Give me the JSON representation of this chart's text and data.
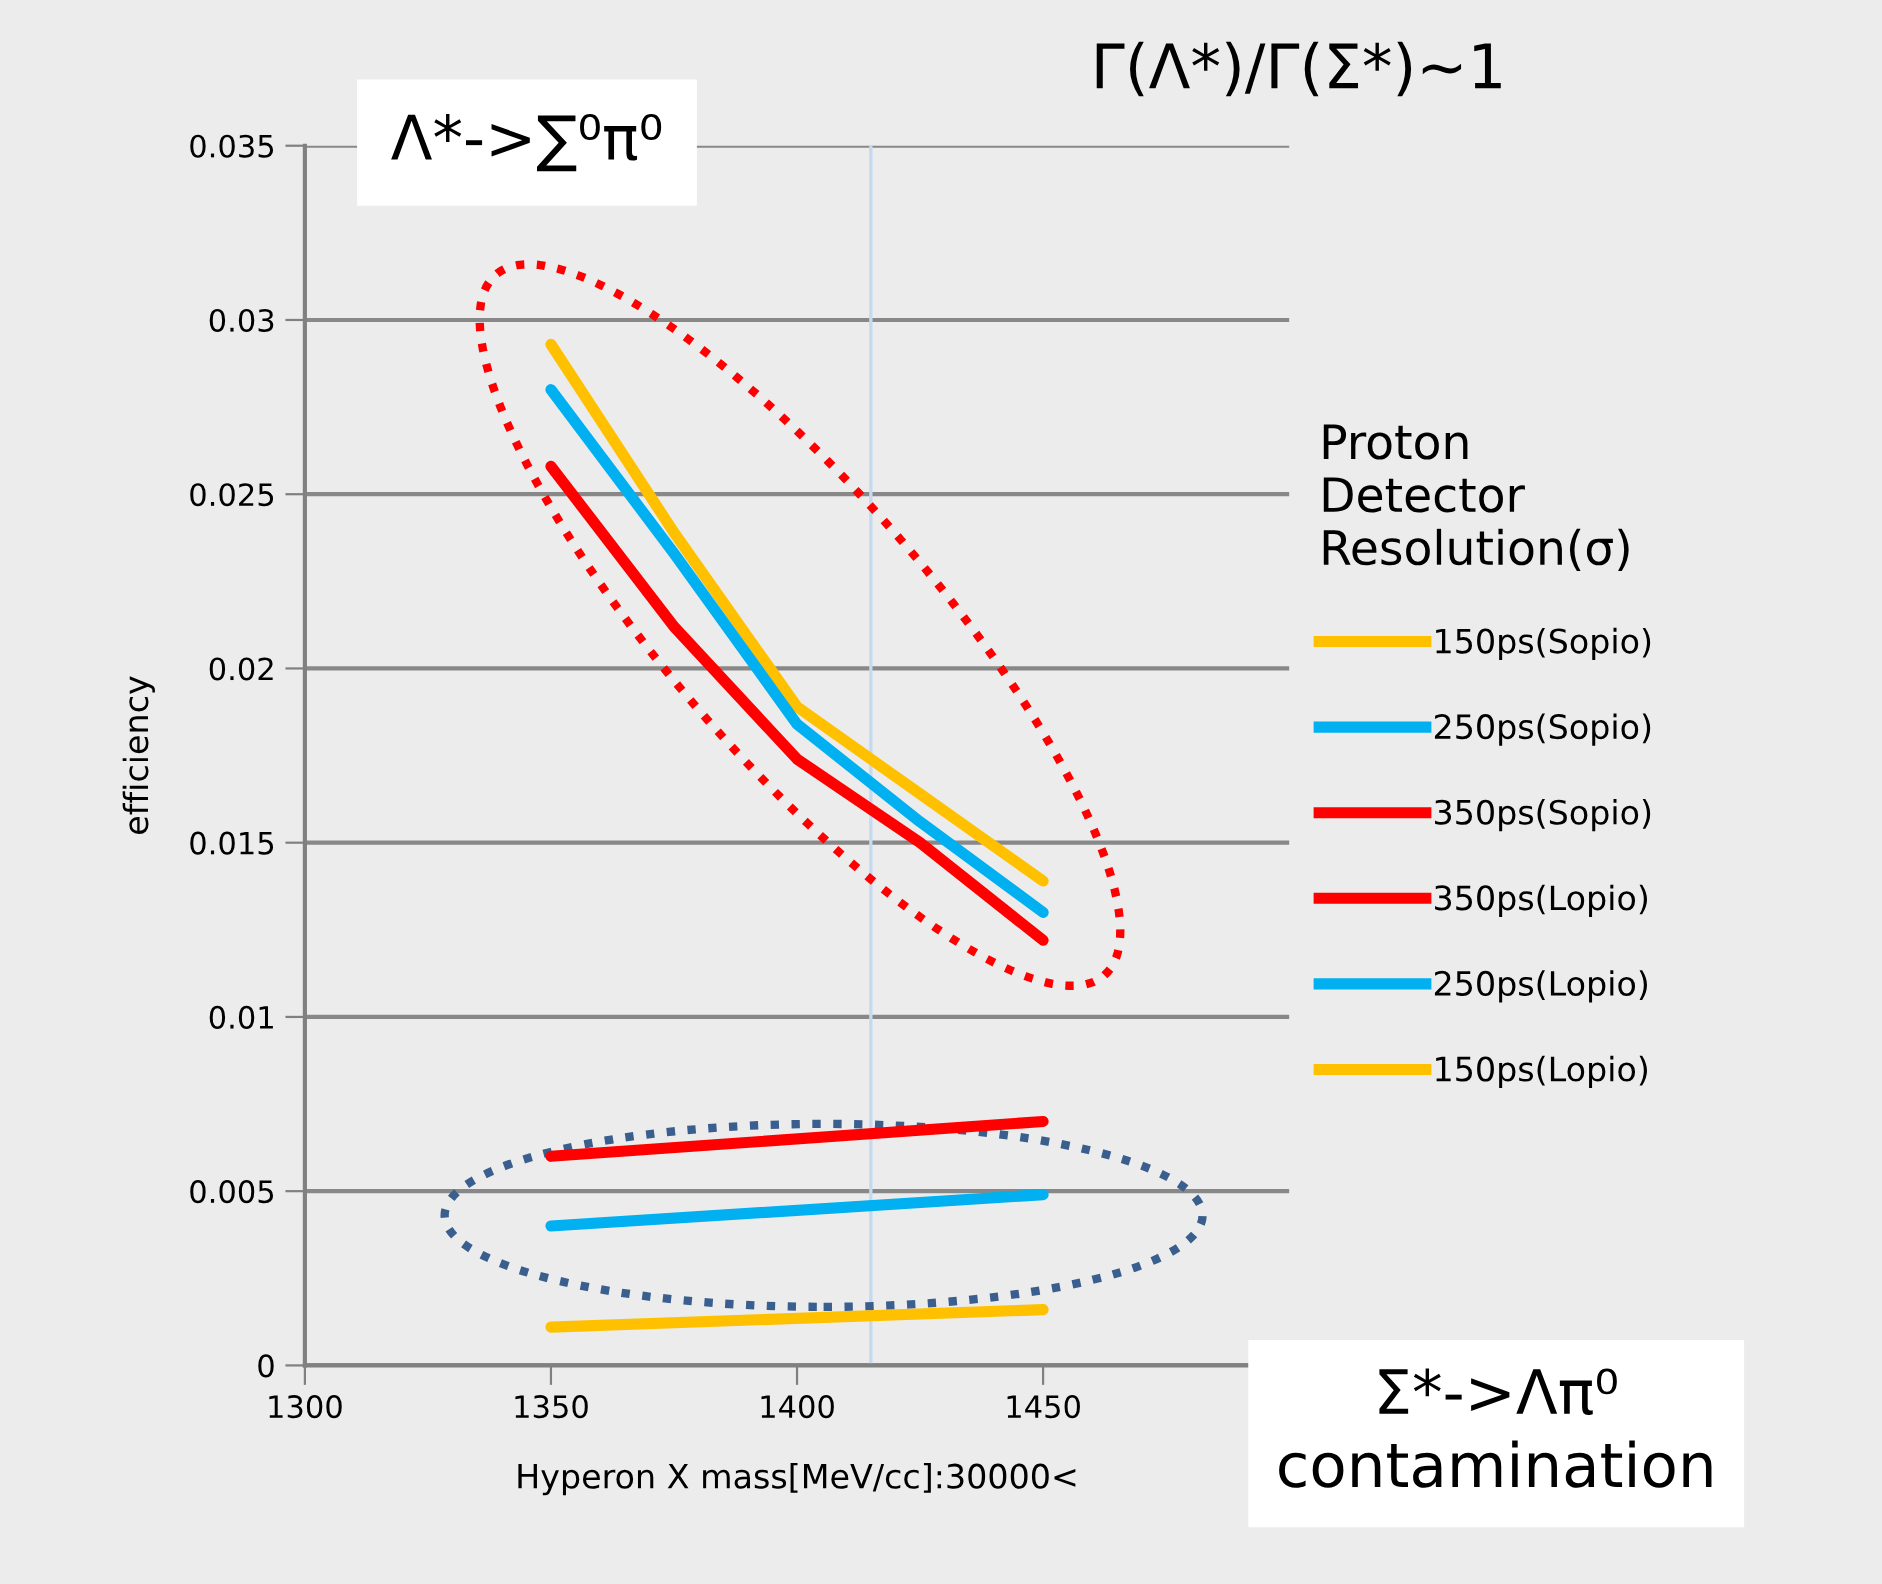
{
  "chart_data": {
    "type": "line",
    "xlabel": "Hyperon X mass[MeV/cc]:30000<",
    "ylabel": "efficiency",
    "legend_title": "Proton Detector Resolution(σ)",
    "annotations": [
      "Γ(Λ*)/Γ(Σ*)∼1",
      "Λ*->∑⁰π⁰",
      "Σ*->Λπ⁰ contamination"
    ],
    "series": [
      {
        "name": "150ps(Sopio)",
        "color": "#ffc000",
        "x": [
          1350,
          1375,
          1400,
          1425,
          1450
        ],
        "values": [
          0.0293,
          0.0239,
          0.0189,
          0.0164,
          0.0139
        ]
      },
      {
        "name": "250ps(Sopio)",
        "color": "#00b0f0",
        "x": [
          1350,
          1375,
          1400,
          1425,
          1450
        ],
        "values": [
          0.028,
          0.0233,
          0.0184,
          0.0156,
          0.013
        ]
      },
      {
        "name": "350ps(Sopio)",
        "color": "#ff0000",
        "x": [
          1350,
          1375,
          1400,
          1425,
          1450
        ],
        "values": [
          0.0258,
          0.0212,
          0.0174,
          0.015,
          0.0122
        ]
      },
      {
        "name": "350ps(Lopio)",
        "color": "#ff0000",
        "x": [
          1350,
          1450
        ],
        "values": [
          0.006,
          0.007
        ]
      },
      {
        "name": "250ps(Lopio)",
        "color": "#00b0f0",
        "x": [
          1350,
          1450
        ],
        "values": [
          0.004,
          0.0049
        ]
      },
      {
        "name": "150ps(Lopio)",
        "color": "#ffc000",
        "x": [
          1350,
          1450
        ],
        "values": [
          0.0011,
          0.0016
        ]
      }
    ],
    "xlim": [
      1300,
      1500
    ],
    "xticks": [
      1300,
      1350,
      1400,
      1450
    ],
    "ylim": [
      0,
      0.035
    ],
    "yticks": [
      0,
      0.005,
      0.01,
      0.015,
      0.02,
      0.025,
      0.03,
      0.035
    ],
    "ref_lines": [
      {
        "axis": "x",
        "value": 1415,
        "color": "#c5d9f1"
      }
    ],
    "grid": "y",
    "legend": "right",
    "marker": "none",
    "line_style": "solid"
  }
}
